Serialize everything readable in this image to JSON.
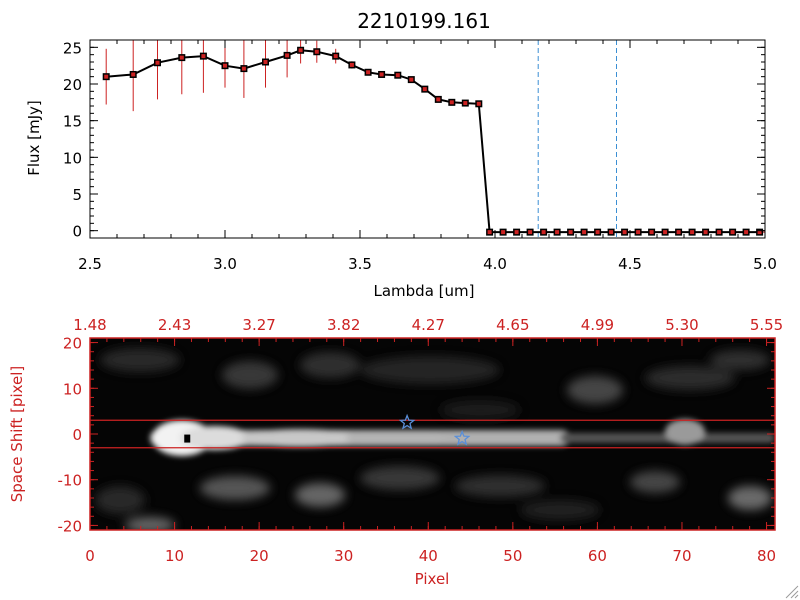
{
  "chart_data": [
    {
      "type": "line",
      "title": "2210199.161",
      "xlabel": "Lambda [um]",
      "ylabel": "Flux [mJy]",
      "xlim": [
        2.5,
        5.0
      ],
      "ylim": [
        -1,
        26
      ],
      "x_ticks": [
        "2.5",
        "3.0",
        "3.5",
        "4.0",
        "4.5",
        "5.0"
      ],
      "y_ticks": [
        "0",
        "5",
        "10",
        "15",
        "20",
        "25"
      ],
      "x_tick_values": [
        2.5,
        3.0,
        3.5,
        4.0,
        4.5,
        5.0
      ],
      "y_tick_values": [
        0,
        5,
        10,
        15,
        20,
        25
      ],
      "grid": false,
      "line_color": "#000000",
      "marker_color": "#cc2222",
      "errorbar_color": "#cc2222",
      "vline_color": "#3b8fd4",
      "vlines": [
        4.16,
        4.45
      ],
      "series": [
        {
          "x": [
            2.56,
            2.66,
            2.75,
            2.84,
            2.92,
            3.0,
            3.07,
            3.15,
            3.23,
            3.28,
            3.34,
            3.41,
            3.47,
            3.53,
            3.58,
            3.64,
            3.69,
            3.74,
            3.79,
            3.84,
            3.89,
            3.94,
            3.98,
            4.03,
            4.08,
            4.13,
            4.18,
            4.23,
            4.28,
            4.33,
            4.38,
            4.43,
            4.48,
            4.53,
            4.58,
            4.63,
            4.68,
            4.73,
            4.78,
            4.83,
            4.88,
            4.93,
            4.98
          ],
          "y": [
            21.0,
            21.3,
            22.9,
            23.6,
            23.8,
            22.5,
            22.1,
            23.0,
            23.9,
            24.6,
            24.4,
            23.8,
            22.6,
            21.6,
            21.3,
            21.2,
            20.6,
            19.3,
            17.9,
            17.5,
            17.4,
            17.3,
            -0.2,
            -0.2,
            -0.2,
            -0.2,
            -0.2,
            -0.2,
            -0.2,
            -0.2,
            -0.2,
            -0.2,
            -0.2,
            -0.2,
            -0.2,
            -0.2,
            -0.2,
            -0.2,
            -0.2,
            -0.2,
            -0.2,
            -0.2,
            -0.2
          ],
          "yerr": [
            3.8,
            5.0,
            5.0,
            5.0,
            5.0,
            3.0,
            4.0,
            3.5,
            3.0,
            1.8,
            1.5,
            1.0,
            0.5,
            0.4,
            0.3,
            0.3,
            0.3,
            0.3,
            0.3,
            0.3,
            0.3,
            0.3,
            0,
            0,
            0,
            0,
            0,
            0,
            0,
            0,
            0,
            0,
            0,
            0,
            0,
            0,
            0,
            0,
            0,
            0,
            0,
            0,
            0
          ]
        }
      ]
    },
    {
      "type": "heatmap",
      "xlabel": "Pixel",
      "ylabel": "Space Shift [pixel]",
      "xlim": [
        0,
        81
      ],
      "ylim": [
        -21,
        21
      ],
      "x_ticks": [
        "0",
        "10",
        "20",
        "30",
        "40",
        "50",
        "60",
        "70",
        "80"
      ],
      "x_tick_values": [
        0,
        10,
        20,
        30,
        40,
        50,
        60,
        70,
        80
      ],
      "y_ticks": [
        "20",
        "10",
        "0",
        "-10",
        "-20"
      ],
      "y_tick_values": [
        20,
        10,
        0,
        -10,
        -20
      ],
      "top_ticks": [
        "1.48",
        "2.43",
        "3.27",
        "3.82",
        "4.27",
        "4.65",
        "4.99",
        "5.30",
        "5.55"
      ],
      "top_tick_values": [
        0,
        10,
        20,
        30,
        40,
        50,
        60,
        70,
        80
      ],
      "axis_color": "#cc2222",
      "colormap": "grayscale",
      "extraction_aperture": [
        -3,
        3
      ],
      "source_marker": [
        11.5,
        -1
      ],
      "star_markers": [
        [
          37.5,
          2.5
        ],
        [
          44,
          -1
        ]
      ],
      "star_color": "#5a8fd8"
    }
  ]
}
